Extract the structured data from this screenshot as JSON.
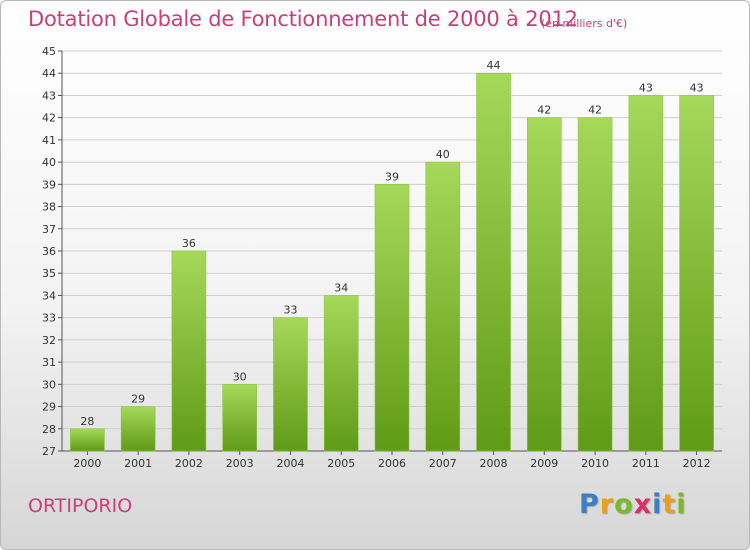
{
  "header": {
    "title": "Dotation Globale de Fonctionnement de 2000 à 2012",
    "unit": "(en milliers d'€)"
  },
  "footer": {
    "commune": "ORTIPORIO",
    "logo_letters": [
      "P",
      "r",
      "o",
      "x",
      "i",
      "t",
      "i"
    ],
    "logo_colors": [
      "#3a7fc4",
      "#e8a020",
      "#7ab82c",
      "#d8306a",
      "#3a7fc4",
      "#e8a020",
      "#7ab82c"
    ]
  },
  "colors": {
    "bar_light": "#a6d85a",
    "bar_dark": "#5f9b16",
    "grid": "#cfcfcf",
    "accent": "#c8407a"
  },
  "chart_data": {
    "type": "bar",
    "categories": [
      "2000",
      "2001",
      "2002",
      "2003",
      "2004",
      "2005",
      "2006",
      "2007",
      "2008",
      "2009",
      "2010",
      "2011",
      "2012"
    ],
    "values": [
      28,
      29,
      36,
      30,
      33,
      34,
      39,
      40,
      44,
      42,
      42,
      43,
      43
    ],
    "title": "Dotation Globale de Fonctionnement de 2000 à 2012",
    "ylim": [
      27,
      45
    ],
    "yticks": [
      27,
      28,
      29,
      30,
      31,
      32,
      33,
      34,
      35,
      36,
      37,
      38,
      39,
      40,
      41,
      42,
      43,
      44,
      45
    ],
    "grid": true,
    "data_labels": true
  }
}
